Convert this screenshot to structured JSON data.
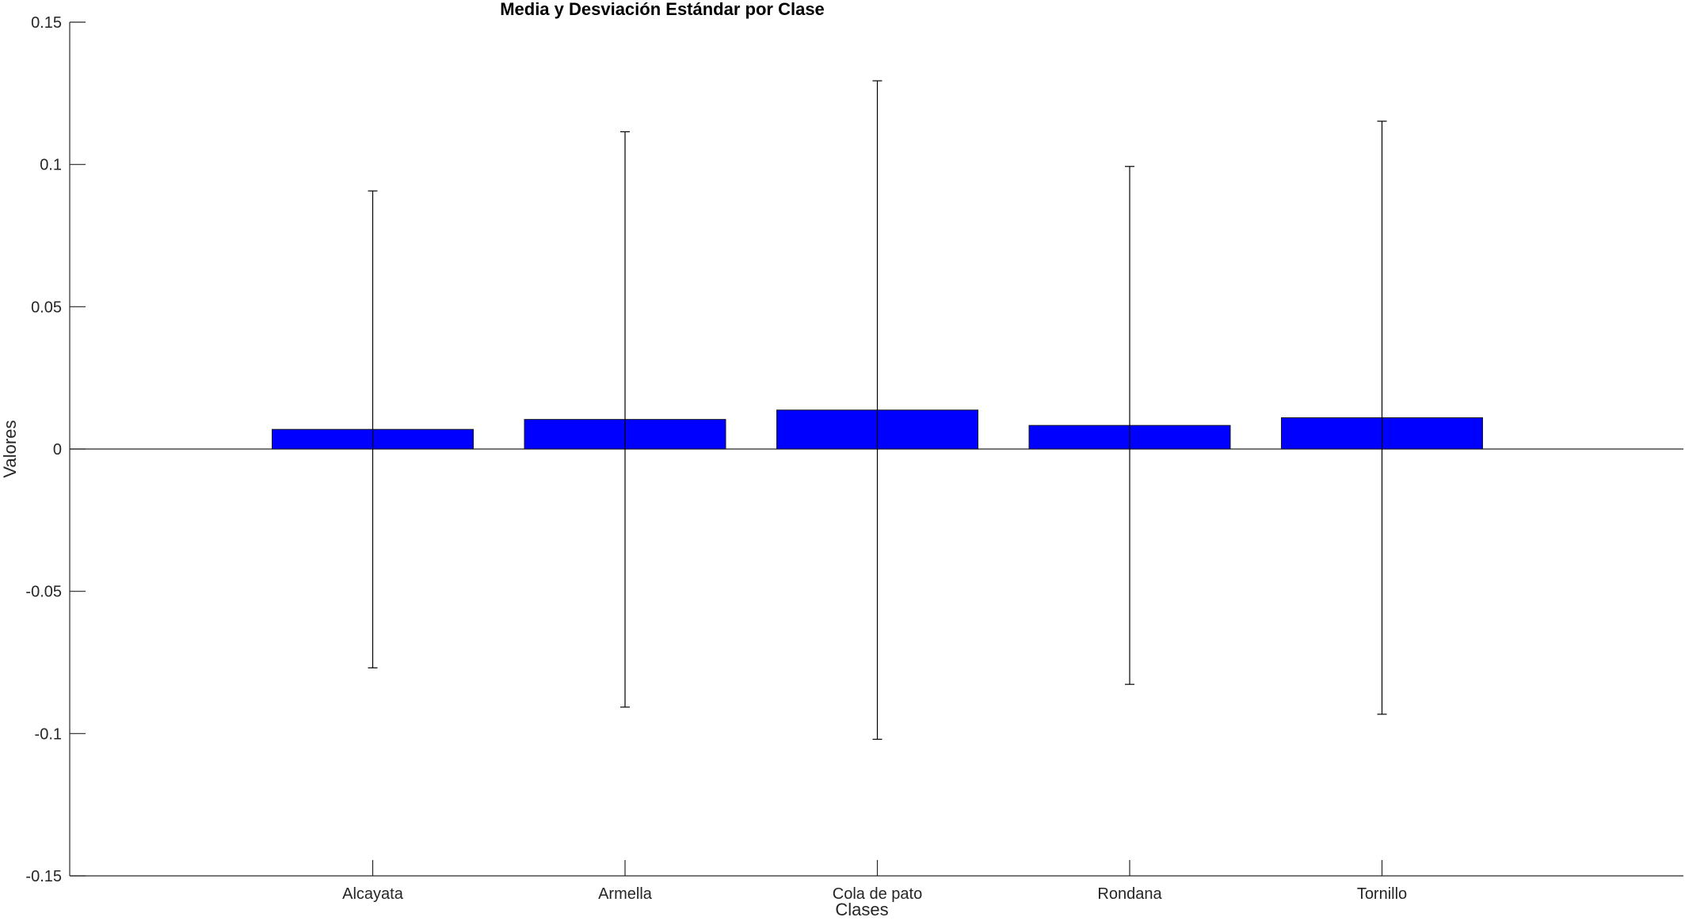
{
  "chart_data": {
    "type": "bar",
    "title": "Media y Desviación Estándar por Clase",
    "xlabel": "Clases",
    "ylabel": "Valores",
    "categories": [
      "Alcayata",
      "Armella",
      "Cola de pato",
      "Rondana",
      "Tornillo"
    ],
    "values": [
      0.0069,
      0.0104,
      0.0137,
      0.0083,
      0.011
    ],
    "error_bars": [
      0.0838,
      0.1011,
      0.1157,
      0.091,
      0.1042
    ],
    "ylim": [
      -0.15,
      0.15
    ],
    "yticks": [
      -0.15,
      -0.1,
      -0.05,
      0,
      0.05,
      0.1,
      0.15
    ],
    "ytick_labels": [
      "-0.15",
      "-0.1",
      "-0.05",
      "0",
      "0.05",
      "0.1",
      "0.15"
    ],
    "grid": false,
    "bar_color": "#0000ff",
    "errorbar_color": "#000000"
  }
}
